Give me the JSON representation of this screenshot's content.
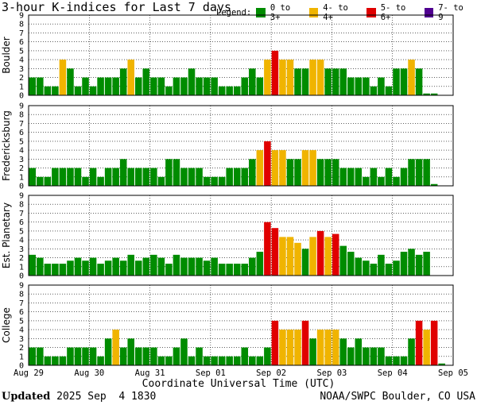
{
  "chart_data": {
    "type": "bar",
    "title": "3-hour K-indices for Last 7 days",
    "xlabel": "Coordinate Universal Time (UTC)",
    "ylim": [
      0,
      9
    ],
    "y_ticks": [
      "0",
      "1",
      "2",
      "3",
      "4",
      "5",
      "6",
      "7",
      "8",
      "9"
    ],
    "x_ticks": [
      "Aug 29",
      "Aug 30",
      "Aug 31",
      "Sep 01",
      "Sep 02",
      "Sep 03",
      "Sep 04",
      "Sep 05"
    ],
    "grid": true,
    "legend_position": "top",
    "legend": {
      "label": "Legend:",
      "items": [
        {
          "text": "0 to 3+",
          "color": "#008c00"
        },
        {
          "text": "4- to 4+",
          "color": "#f0b400"
        },
        {
          "text": "5- to 6+",
          "color": "#e00000"
        },
        {
          "text": "7- to 9",
          "color": "#500090"
        }
      ]
    },
    "panels": [
      {
        "name": "Boulder",
        "values": [
          2,
          2,
          1,
          1,
          4,
          3,
          1,
          2,
          1,
          2,
          2,
          2,
          3,
          4,
          2,
          3,
          2,
          2,
          1,
          2,
          2,
          3,
          2,
          2,
          2,
          1,
          1,
          1,
          2,
          3,
          2,
          4,
          5,
          4,
          4,
          3,
          3,
          4,
          4,
          3,
          3,
          3,
          2,
          2,
          2,
          1,
          2,
          1,
          3,
          3,
          4,
          3,
          0.2,
          0.2
        ]
      },
      {
        "name": "Fredericksburg",
        "values": [
          2,
          1,
          1,
          2,
          2,
          2,
          2,
          1,
          2,
          1,
          2,
          2,
          3,
          2,
          2,
          2,
          2,
          1,
          3,
          3,
          2,
          2,
          2,
          1,
          1,
          1,
          2,
          2,
          2,
          3,
          4,
          5,
          4,
          4,
          3,
          3,
          4,
          4,
          3,
          3,
          3,
          2,
          2,
          2,
          1,
          2,
          1,
          2,
          1,
          2,
          3,
          3,
          3,
          0.2
        ]
      },
      {
        "name": "Est. Planetary",
        "values": [
          2.33,
          2,
          1.33,
          1.33,
          1.33,
          1.67,
          2,
          1.67,
          2,
          1.33,
          1.67,
          2,
          1.67,
          2.33,
          1.67,
          2,
          2.33,
          2,
          1.33,
          2.33,
          2,
          2,
          2,
          1.67,
          2,
          1.33,
          1.33,
          1.33,
          1.33,
          2,
          2.67,
          6,
          5.33,
          4.33,
          4.33,
          3.67,
          3,
          4.33,
          5,
          4.33,
          4.67,
          3.33,
          2.67,
          2,
          1.67,
          1.33,
          2.33,
          1.33,
          1.67,
          2.67,
          3,
          2.33,
          2.67
        ]
      },
      {
        "name": "College",
        "values": [
          2,
          2,
          1,
          1,
          1,
          2,
          2,
          2,
          2,
          1,
          3,
          4,
          2,
          3,
          2,
          2,
          2,
          1,
          1,
          2,
          3,
          1,
          2,
          1,
          1,
          1,
          1,
          1,
          2,
          1,
          1,
          2,
          5,
          4,
          4,
          4,
          5,
          3,
          4,
          4,
          4,
          3,
          2,
          3,
          2,
          2,
          2,
          1,
          1,
          1,
          3,
          5,
          4,
          5,
          0.2
        ]
      }
    ]
  },
  "footer": {
    "updated_label": "Updated",
    "updated_value": "2025 Sep  4 1830",
    "credit": "NOAA/SWPC Boulder, CO USA"
  }
}
